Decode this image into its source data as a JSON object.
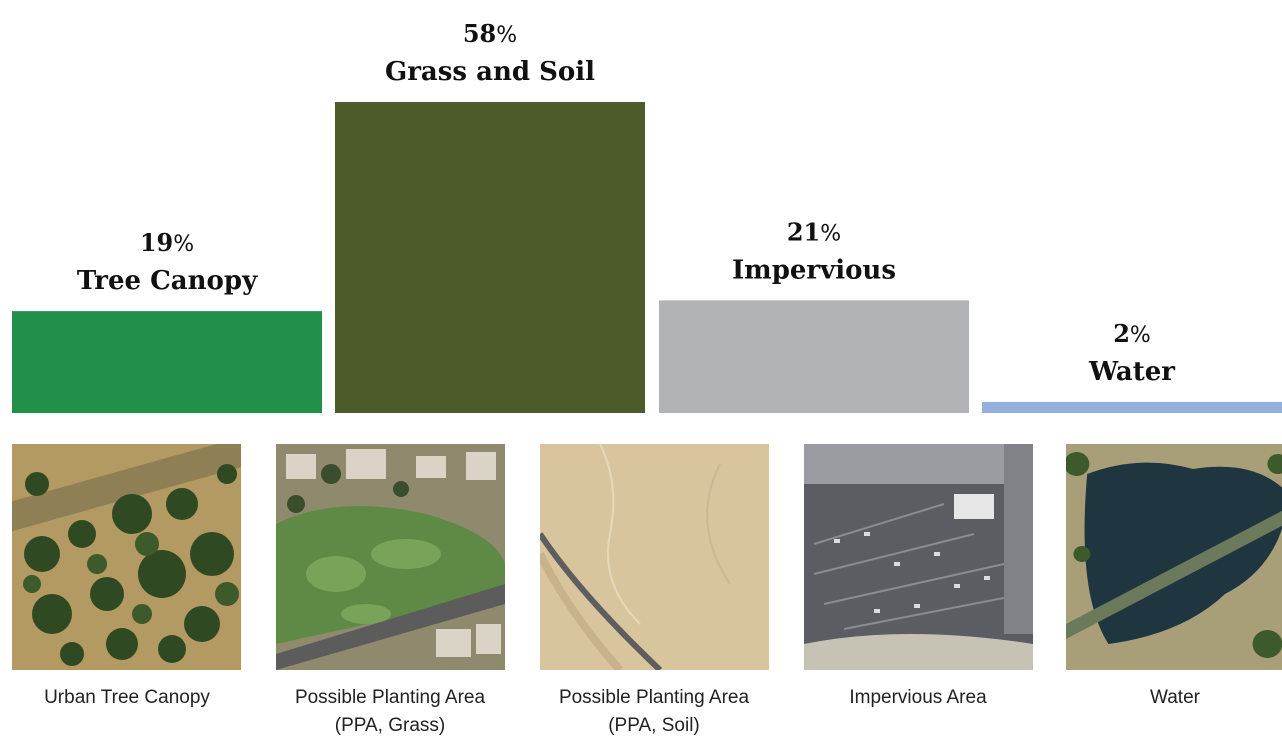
{
  "chart_data": {
    "type": "bar",
    "categories": [
      "Tree Canopy",
      "Grass and Soil",
      "Impervious",
      "Water"
    ],
    "values": [
      19,
      58,
      21,
      2
    ],
    "value_suffix": "%",
    "colors": [
      "#21914a",
      "#4d5a2a",
      "#b2b3b6",
      "#94aedf"
    ],
    "ylim": [
      0,
      58
    ],
    "grid": false,
    "legend": "none"
  },
  "images": [
    {
      "caption_line1": "Urban Tree Canopy",
      "caption_line2": "",
      "icon": "tree-canopy-aerial"
    },
    {
      "caption_line1": "Possible Planting Area",
      "caption_line2": "(PPA, Grass)",
      "icon": "grass-aerial"
    },
    {
      "caption_line1": "Possible Planting Area",
      "caption_line2": "(PPA, Soil)",
      "icon": "soil-aerial"
    },
    {
      "caption_line1": "Impervious Area",
      "caption_line2": "",
      "icon": "parking-lot-aerial"
    },
    {
      "caption_line1": "Water",
      "caption_line2": "",
      "icon": "lake-aerial"
    }
  ]
}
